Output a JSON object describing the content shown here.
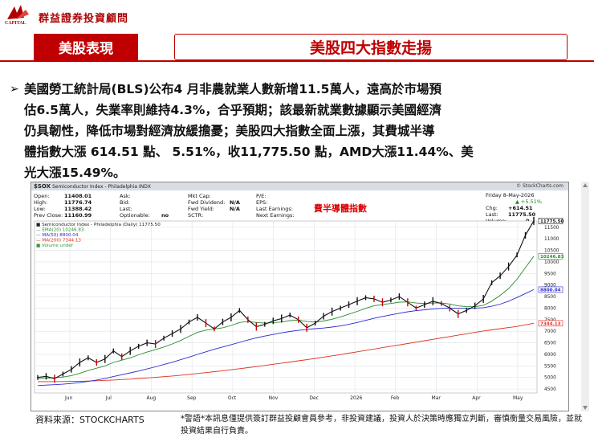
{
  "logo": {
    "company": "群益證券投資顧問",
    "cap_text": "CAPITAL"
  },
  "header": {
    "section_tab": "美股表現",
    "title": "美股四大指數走揚"
  },
  "paragraph": {
    "line1": "美國勞工統計局(BLS)公布4  月非農就業人數新增11.5萬人，遠高於市場預",
    "line2": "估6.5萬人，失業率則維持4.3%，合乎預期；該最新就業數據顯示美國經濟",
    "line3": "仍具韌性，降低市場對經濟放緩擔憂；美股四大指數全面上漲，其費城半導",
    "line4": "體指數大漲 614.51 點、 5.51%，收11,775.50 點，AMD大漲11.44%、美",
    "line5": "光大漲15.49%。"
  },
  "chart_header": {
    "symbol": "$SOX",
    "name": "Semiconductor Index - Philadelphia INDX",
    "brand": "© StockCharts.com"
  },
  "stats": {
    "open_k": "Open:",
    "open_v": "11408.01",
    "high_k": "High:",
    "high_v": "11776.74",
    "low_k": "Low:",
    "low_v": "11388.42",
    "prev_k": "Prev Close:",
    "prev_v": "11160.99",
    "ask": "Ask:",
    "bid": "Bid:",
    "last": "Last:",
    "optionable": "Optionable:",
    "optionable_v": "no",
    "mktcap": "Mkt Cap:",
    "fwddiv": "Fwd Dividend:",
    "fwddiv_v": "N/A",
    "fwdyield": "Fwd Yield:",
    "fwdyield_v": "N/A",
    "sctr": "SCTR:",
    "pe": "P/E:",
    "eps": "EPS:",
    "lastearn": "Last Earnings:",
    "nextearn": "Next Earnings:",
    "date": "Friday  8-May-2026",
    "pct": "▲ +5.51%",
    "chg_k": "Chg:",
    "chg_v": "+614.51",
    "last_k": "Last:",
    "last_v": "11775.50",
    "vol_k": "Volume:",
    "vol_v": "0"
  },
  "legend": {
    "l1": "■ Semiconductor Index - Philadelphia (Daily) 11775.50",
    "l2": "— EMA(20) 10246.83",
    "l3": "— MA(50) 8800.04",
    "l4": "— MA(200) 7344.13",
    "l5": "■ Volume undef"
  },
  "chart_note": "費半導體指數",
  "source": "資料來源：STOCKCHARTS",
  "disclaimer": "*警語*本訊息僅提供簽訂群益投顧會員參考，非投資建議，投資人於決策時應獨立判斷，審慎衡量交易風險，並就投資結果自行負責。",
  "colors": {
    "brand_red": "#c00000",
    "price": "#111111",
    "ema20": "#2a8a2a",
    "ma50": "#2a2ad0",
    "ma200": "#e0301e"
  },
  "chart_data": {
    "type": "line",
    "title": "Semiconductor Index - Philadelphia INDX",
    "x_ticks": [
      "Jun",
      "Jul",
      "Aug",
      "Sep",
      "Oct",
      "Nov",
      "Dec",
      "2026",
      "Feb",
      "Mar",
      "Apr",
      "May"
    ],
    "y_ticks": [
      4500,
      5000,
      5500,
      6000,
      6500,
      7000,
      7500,
      8000,
      8500,
      9000,
      9500,
      10000,
      10500,
      11000,
      11500
    ],
    "ylim": [
      4400,
      11700
    ],
    "value_labels": [
      "11775.50",
      "10246.83",
      "8800.04",
      "7344.13"
    ],
    "series": [
      {
        "name": "Semiconductor Index - Philadelphia (Daily) 11775.50",
        "values": [
          5000,
          5050,
          4950,
          5150,
          5350,
          5650,
          5850,
          5650,
          5800,
          6150,
          5900,
          6150,
          6350,
          6500,
          6450,
          6700,
          6900,
          7100,
          7400,
          7600,
          7350,
          7100,
          7400,
          7600,
          7900,
          7500,
          7200,
          7300,
          7450,
          7550,
          7700,
          7500,
          7150,
          7350,
          7650,
          7850,
          8000,
          8150,
          8300,
          8450,
          8400,
          8250,
          8350,
          8500,
          8250,
          8000,
          8150,
          8300,
          8200,
          8000,
          7750,
          7900,
          8100,
          8400,
          9100,
          9400,
          9800,
          10300,
          11150,
          11775
        ]
      },
      {
        "name": "EMA(20) 10246.83",
        "values": [
          4950,
          4970,
          4990,
          5020,
          5080,
          5180,
          5300,
          5400,
          5500,
          5650,
          5750,
          5850,
          5980,
          6100,
          6200,
          6320,
          6450,
          6600,
          6780,
          6950,
          7050,
          7100,
          7150,
          7250,
          7380,
          7420,
          7380,
          7350,
          7370,
          7400,
          7460,
          7480,
          7420,
          7400,
          7440,
          7520,
          7620,
          7740,
          7860,
          7990,
          8100,
          8160,
          8200,
          8260,
          8270,
          8220,
          8200,
          8220,
          8220,
          8180,
          8100,
          8060,
          8060,
          8120,
          8300,
          8550,
          8850,
          9250,
          9750,
          10247
        ]
      },
      {
        "name": "MA(50) 8800.04",
        "values": [
          4650,
          4670,
          4690,
          4710,
          4740,
          4780,
          4830,
          4890,
          4960,
          5040,
          5120,
          5200,
          5280,
          5370,
          5460,
          5560,
          5660,
          5770,
          5880,
          6000,
          6110,
          6220,
          6320,
          6420,
          6520,
          6620,
          6710,
          6790,
          6860,
          6930,
          6990,
          7040,
          7080,
          7110,
          7140,
          7180,
          7230,
          7300,
          7380,
          7470,
          7560,
          7640,
          7710,
          7780,
          7840,
          7890,
          7930,
          7960,
          7990,
          8000,
          8000,
          8000,
          8000,
          8020,
          8080,
          8170,
          8300,
          8460,
          8630,
          8800
        ]
      },
      {
        "name": "MA(200) 7344.13",
        "values": [
          4820,
          4820,
          4820,
          4825,
          4830,
          4835,
          4845,
          4860,
          4875,
          4890,
          4910,
          4930,
          4955,
          4980,
          5005,
          5035,
          5065,
          5100,
          5135,
          5170,
          5210,
          5250,
          5290,
          5335,
          5380,
          5425,
          5470,
          5520,
          5570,
          5620,
          5670,
          5720,
          5770,
          5825,
          5880,
          5935,
          5990,
          6050,
          6110,
          6170,
          6230,
          6290,
          6350,
          6410,
          6470,
          6530,
          6590,
          6650,
          6710,
          6770,
          6830,
          6890,
          6950,
          7010,
          7060,
          7110,
          7160,
          7210,
          7280,
          7344
        ]
      }
    ]
  }
}
